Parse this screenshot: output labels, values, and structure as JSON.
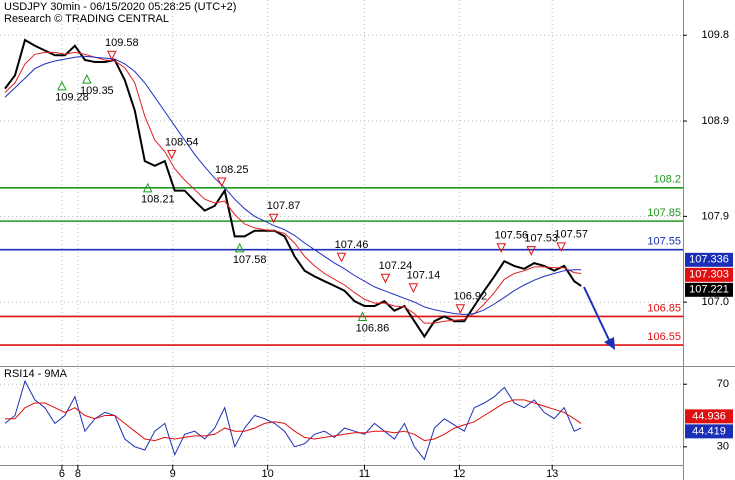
{
  "chart_data": [
    {
      "type": "line",
      "title": "USDJPY 30min - 06/15/2020 05:28:25 (UTC+2)",
      "subtitle": "Research © TRADING CENTRAL",
      "xlim": [
        0,
        342
      ],
      "ylim": [
        106.33,
        110.17
      ],
      "yticks": [
        109.8,
        108.9,
        107.9,
        {
          "value": 107,
          "label": "107.0"
        }
      ],
      "x": [
        2.5,
        7.5,
        12.5,
        17.5,
        22.5,
        27.5,
        32.5,
        37.5,
        42.5,
        47.5,
        52.5,
        57.5,
        62.5,
        67.5,
        72.5,
        77.5,
        82.5,
        87.5,
        92.5,
        97.5,
        102.5,
        107.5,
        112.5,
        117.5,
        122.5,
        127.5,
        132.5,
        137.5,
        142.5,
        147.5,
        152.5,
        157.5,
        162.5,
        167.5,
        172.5,
        177.5,
        182.5,
        187.5,
        192.5,
        197.5,
        202.5,
        207.5,
        212.5,
        217.5,
        222.5,
        227.5,
        232.5,
        237.5,
        242.5,
        247.5,
        252.5,
        257.5,
        262.5,
        267.5,
        272.5,
        277.5,
        282.5,
        287.5,
        291
      ],
      "series": [
        {
          "color": "#000000",
          "values": [
            109.24,
            109.38,
            109.75,
            109.69,
            109.64,
            109.59,
            109.59,
            109.69,
            109.54,
            109.52,
            109.52,
            109.54,
            109.33,
            109.01,
            108.48,
            108.43,
            108.48,
            108.17,
            108.17,
            108.06,
            107.96,
            108.01,
            108.17,
            107.69,
            107.69,
            107.75,
            107.75,
            107.75,
            107.69,
            107.48,
            107.33,
            107.27,
            107.22,
            107.17,
            107.12,
            107.01,
            106.96,
            106.96,
            107.01,
            106.91,
            106.96,
            106.8,
            106.64,
            106.8,
            106.85,
            106.8,
            106.8,
            106.96,
            107.12,
            107.27,
            107.43,
            107.38,
            107.35,
            107.41,
            107.38,
            107.33,
            107.38,
            107.22,
            107.17
          ]
        },
        {
          "color": "#e02020",
          "values": [
            109.2,
            109.3,
            109.5,
            109.6,
            109.62,
            109.62,
            109.6,
            109.62,
            109.6,
            109.57,
            109.54,
            109.53,
            109.46,
            109.3,
            108.95,
            108.7,
            108.58,
            108.4,
            108.28,
            108.18,
            108.08,
            108.04,
            108.06,
            107.92,
            107.82,
            107.78,
            107.76,
            107.75,
            107.72,
            107.62,
            107.48,
            107.38,
            107.3,
            107.24,
            107.18,
            107.1,
            107.03,
            106.99,
            106.99,
            106.96,
            106.95,
            106.88,
            106.78,
            106.78,
            106.8,
            106.81,
            106.82,
            106.88,
            106.98,
            107.1,
            107.24,
            107.3,
            107.33,
            107.37,
            107.37,
            107.36,
            107.36,
            107.31,
            107.3
          ]
        },
        {
          "color": "#2030c0",
          "values": [
            109.15,
            109.25,
            109.35,
            109.45,
            109.5,
            109.53,
            109.55,
            109.57,
            109.58,
            109.57,
            109.56,
            109.55,
            109.5,
            109.42,
            109.3,
            109.15,
            109.0,
            108.85,
            108.7,
            108.55,
            108.42,
            108.3,
            108.2,
            108.08,
            107.98,
            107.9,
            107.85,
            107.8,
            107.76,
            107.7,
            107.62,
            107.55,
            107.48,
            107.41,
            107.35,
            107.28,
            107.22,
            107.16,
            107.12,
            107.08,
            107.04,
            107.0,
            106.95,
            106.92,
            106.9,
            106.88,
            106.87,
            106.88,
            106.92,
            106.98,
            107.05,
            107.12,
            107.18,
            107.23,
            107.27,
            107.3,
            107.33,
            107.34,
            107.34
          ]
        }
      ],
      "levels": [
        {
          "value": 108.2,
          "color": "#1f9a1f"
        },
        {
          "value": 107.85,
          "color": "#1f9a1f"
        },
        {
          "value": 107.55,
          "color": "#1a2fb8"
        },
        {
          "value": 106.85,
          "color": "#e01010"
        },
        {
          "value": 106.55,
          "color": "#e01010"
        }
      ],
      "markers": [
        {
          "x": 31,
          "value": 109.28,
          "dir": "up"
        },
        {
          "x": 43.5,
          "value": 109.35,
          "dir": "up"
        },
        {
          "x": 56,
          "value": 109.58,
          "dir": "down"
        },
        {
          "x": 86,
          "value": 108.54,
          "dir": "down"
        },
        {
          "x": 74,
          "value": 108.21,
          "dir": "up"
        },
        {
          "x": 111,
          "value": 108.25,
          "dir": "down"
        },
        {
          "x": 137,
          "value": 107.87,
          "dir": "down"
        },
        {
          "x": 120,
          "value": 107.58,
          "dir": "up"
        },
        {
          "x": 171,
          "value": 107.46,
          "dir": "down"
        },
        {
          "x": 193,
          "value": 107.24,
          "dir": "down"
        },
        {
          "x": 207,
          "value": 107.14,
          "dir": "down"
        },
        {
          "x": 181.5,
          "value": 106.86,
          "dir": "up"
        },
        {
          "x": 230.5,
          "value": 106.92,
          "dir": "down"
        },
        {
          "x": 251,
          "value": 107.56,
          "dir": "down"
        },
        {
          "x": 266,
          "value": 107.53,
          "dir": "down"
        },
        {
          "x": 281,
          "value": 107.57,
          "dir": "down"
        }
      ],
      "price_tags": [
        {
          "value": 107.336,
          "color": "#1a2fb8"
        },
        {
          "value": 107.303,
          "color": "#e01010"
        },
        {
          "value": 107.221,
          "color": "#000000"
        }
      ]
    },
    {
      "type": "line",
      "title": "RSI14 - 9MA",
      "xlim": [
        0,
        342
      ],
      "ylim": [
        18.4,
        81
      ],
      "yticks": [
        70,
        30
      ],
      "xticks": [
        {
          "value": 31,
          "label": "6"
        },
        {
          "value": 39,
          "label": "8"
        },
        {
          "value": 86.5,
          "label": "9"
        },
        {
          "value": 134,
          "label": "10"
        },
        {
          "value": 182.5,
          "label": "11"
        },
        {
          "value": 230,
          "label": "12"
        },
        {
          "value": 276.5,
          "label": "13"
        }
      ],
      "x": [
        2.5,
        7.5,
        12.5,
        17.5,
        22.5,
        27.5,
        32.5,
        37.5,
        42.5,
        47.5,
        52.5,
        57.5,
        62.5,
        67.5,
        72.5,
        77.5,
        82.5,
        87.5,
        92.5,
        97.5,
        102.5,
        107.5,
        112.5,
        117.5,
        122.5,
        127.5,
        132.5,
        137.5,
        142.5,
        147.5,
        152.5,
        157.5,
        162.5,
        167.5,
        172.5,
        177.5,
        182.5,
        187.5,
        192.5,
        197.5,
        202.5,
        207.5,
        212.5,
        217.5,
        222.5,
        227.5,
        232.5,
        237.5,
        242.5,
        247.5,
        252.5,
        257.5,
        262.5,
        267.5,
        272.5,
        277.5,
        282.5,
        287.5,
        291
      ],
      "series": [
        {
          "color": "#1a2fb8",
          "values": [
            45,
            50,
            72,
            60,
            55,
            45,
            50,
            62,
            40,
            48,
            52,
            50,
            35,
            30,
            28,
            40,
            45,
            25,
            38,
            40,
            35,
            42,
            55,
            30,
            42,
            50,
            48,
            45,
            40,
            30,
            32,
            38,
            40,
            36,
            42,
            40,
            38,
            45,
            40,
            35,
            45,
            30,
            22,
            42,
            48,
            44,
            40,
            55,
            58,
            62,
            68,
            58,
            55,
            60,
            52,
            48,
            55,
            40,
            42
          ]
        },
        {
          "color": "#e01010",
          "values": [
            48,
            48,
            55,
            58,
            58,
            55,
            52,
            55,
            50,
            48,
            50,
            50,
            45,
            40,
            35,
            34,
            36,
            35,
            36,
            37,
            37,
            38,
            42,
            40,
            40,
            42,
            45,
            46,
            45,
            40,
            36,
            35,
            36,
            37,
            38,
            39,
            39,
            40,
            40,
            39,
            40,
            38,
            34,
            35,
            38,
            42,
            44,
            46,
            50,
            54,
            58,
            60,
            60,
            58,
            56,
            54,
            52,
            48,
            45
          ]
        }
      ],
      "price_tags": [
        {
          "value": 44.936,
          "color": "#e01010"
        },
        {
          "value": 44.419,
          "color": "#1a2fb8"
        }
      ]
    }
  ]
}
